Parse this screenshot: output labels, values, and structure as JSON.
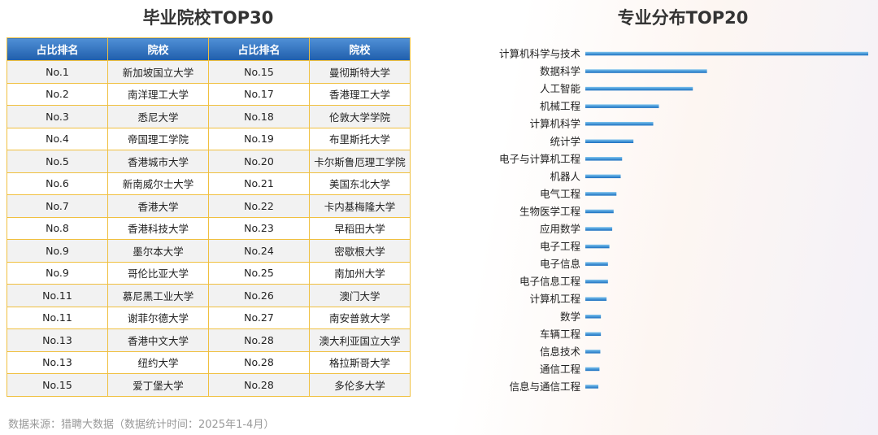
{
  "left": {
    "title": "毕业院校TOP30",
    "headers": [
      "占比排名",
      "院校",
      "占比排名",
      "院校"
    ],
    "rows": [
      [
        "No.1",
        "新加坡国立大学",
        "No.15",
        "曼彻斯特大学"
      ],
      [
        "No.2",
        "南洋理工大学",
        "No.17",
        "香港理工大学"
      ],
      [
        "No.3",
        "悉尼大学",
        "No.18",
        "伦敦大学学院"
      ],
      [
        "No.4",
        "帝国理工学院",
        "No.19",
        "布里斯托大学"
      ],
      [
        "No.5",
        "香港城市大学",
        "No.20",
        "卡尔斯鲁厄理工学院"
      ],
      [
        "No.6",
        "新南威尔士大学",
        "No.21",
        "美国东北大学"
      ],
      [
        "No.7",
        "香港大学",
        "No.22",
        "卡内基梅隆大学"
      ],
      [
        "No.8",
        "香港科技大学",
        "No.23",
        "早稻田大学"
      ],
      [
        "No.9",
        "墨尔本大学",
        "No.24",
        "密歇根大学"
      ],
      [
        "No.9",
        "哥伦比亚大学",
        "No.25",
        "南加州大学"
      ],
      [
        "No.11",
        "慕尼黑工业大学",
        "No.26",
        "澳门大学"
      ],
      [
        "No.11",
        "谢菲尔德大学",
        "No.27",
        "南安普敦大学"
      ],
      [
        "No.13",
        "香港中文大学",
        "No.28",
        "澳大利亚国立大学"
      ],
      [
        "No.13",
        "纽约大学",
        "No.28",
        "格拉斯哥大学"
      ],
      [
        "No.15",
        "爱丁堡大学",
        "No.28",
        "多伦多大学"
      ]
    ]
  },
  "footer": {
    "source": "数据来源：猎聘大数据（数据统计时间：2025年1-4月）"
  },
  "chart_data": {
    "type": "bar",
    "orientation": "horizontal",
    "title": "专业分布TOP20",
    "categories": [
      "计算机科学与技术",
      "数据科学",
      "人工智能",
      "机械工程",
      "计算机科学",
      "统计学",
      "电子与计算机工程",
      "机器人",
      "电气工程",
      "生物医学工程",
      "应用数学",
      "电子工程",
      "电子信息",
      "电子信息工程",
      "计算机工程",
      "数学",
      "车辆工程",
      "信息技术",
      "通信工程",
      "信息与通信工程"
    ],
    "values": [
      100,
      43,
      38,
      26,
      24,
      17,
      13,
      12.5,
      11,
      10,
      9.5,
      8.5,
      8,
      8,
      7.5,
      5.5,
      5.5,
      5.3,
      5,
      4.6
    ],
    "colors": {
      "bar_dark": "#1a6fc0",
      "bar_light": "#7cc3ee"
    }
  }
}
